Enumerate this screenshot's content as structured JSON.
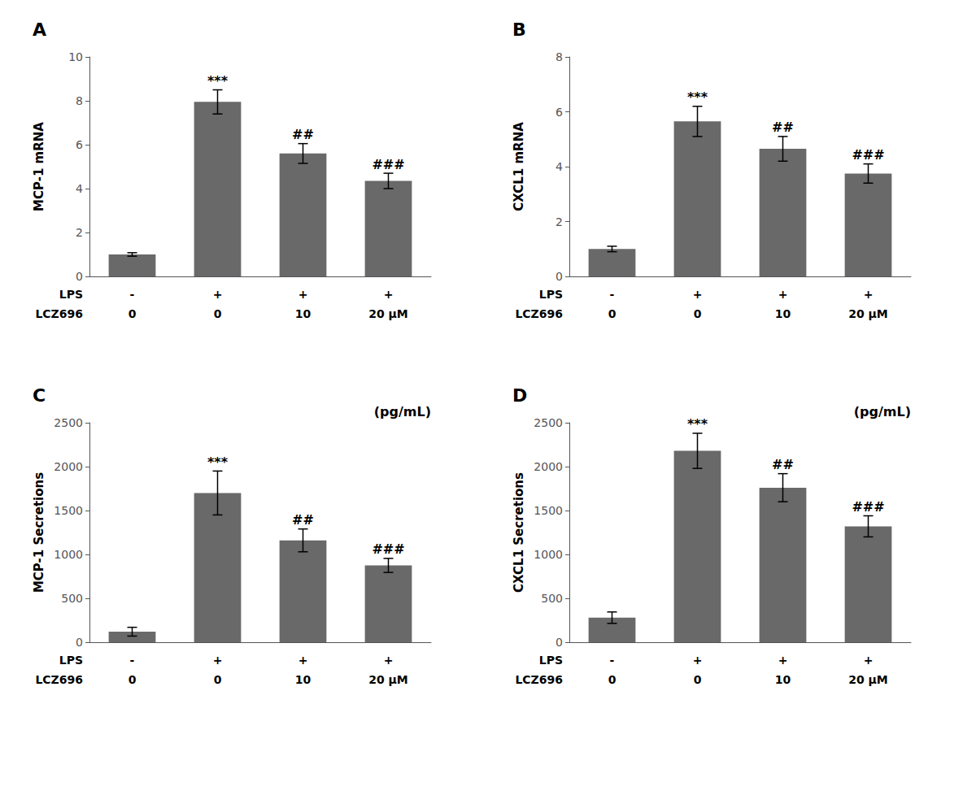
{
  "chart_data": [
    {
      "type": "bar",
      "title": "A",
      "ylabel": "MCP-1 mRNA",
      "values": [
        1.0,
        7.95,
        5.6,
        4.35
      ],
      "errors": [
        0.08,
        0.55,
        0.45,
        0.35
      ],
      "annotations": [
        null,
        "***",
        "##",
        "###"
      ],
      "color": "#696969",
      "ylim": [
        0,
        10
      ],
      "yticks": [
        0,
        2,
        4,
        6,
        8,
        10
      ],
      "grid": false,
      "x_rows": [
        {
          "name": "LPS",
          "labels": [
            "-",
            "+",
            "+",
            "+"
          ]
        },
        {
          "name": "LCZ696",
          "labels": [
            "0",
            "0",
            "10",
            "20 μM"
          ]
        }
      ]
    },
    {
      "type": "bar",
      "title": "B",
      "ylabel": "CXCL1 mRNA",
      "values": [
        1.0,
        5.65,
        4.65,
        3.75
      ],
      "errors": [
        0.1,
        0.55,
        0.45,
        0.35
      ],
      "annotations": [
        null,
        "***",
        "##",
        "###"
      ],
      "color": "#696969",
      "ylim": [
        0,
        8
      ],
      "yticks": [
        0,
        2,
        4,
        6,
        8
      ],
      "grid": false,
      "x_rows": [
        {
          "name": "LPS",
          "labels": [
            "-",
            "+",
            "+",
            "+"
          ]
        },
        {
          "name": "LCZ696",
          "labels": [
            "0",
            "0",
            "10",
            "20 μM"
          ]
        }
      ]
    },
    {
      "type": "bar",
      "title": "C",
      "ylabel": "MCP-1 Secretions",
      "subtitle": "(pg/mL)",
      "values": [
        120,
        1700,
        1160,
        875
      ],
      "errors": [
        50,
        250,
        130,
        80
      ],
      "annotations": [
        null,
        "***",
        "##",
        "###"
      ],
      "color": "#696969",
      "ylim": [
        0,
        2500
      ],
      "yticks": [
        0,
        500,
        1000,
        1500,
        2000,
        2500
      ],
      "grid": false,
      "x_rows": [
        {
          "name": "LPS",
          "labels": [
            "-",
            "+",
            "+",
            "+"
          ]
        },
        {
          "name": "LCZ696",
          "labels": [
            "0",
            "0",
            "10",
            "20 μM"
          ]
        }
      ]
    },
    {
      "type": "bar",
      "title": "D",
      "ylabel": "CXCL1 Secretions",
      "subtitle": "(pg/mL)",
      "values": [
        280,
        2180,
        1760,
        1320
      ],
      "errors": [
        65,
        200,
        160,
        120
      ],
      "annotations": [
        null,
        "***",
        "##",
        "###"
      ],
      "color": "#696969",
      "ylim": [
        0,
        2500
      ],
      "yticks": [
        0,
        500,
        1000,
        1500,
        2000,
        2500
      ],
      "grid": false,
      "x_rows": [
        {
          "name": "LPS",
          "labels": [
            "-",
            "+",
            "+",
            "+"
          ]
        },
        {
          "name": "LCZ696",
          "labels": [
            "0",
            "0",
            "10",
            "20 μM"
          ]
        }
      ]
    }
  ]
}
